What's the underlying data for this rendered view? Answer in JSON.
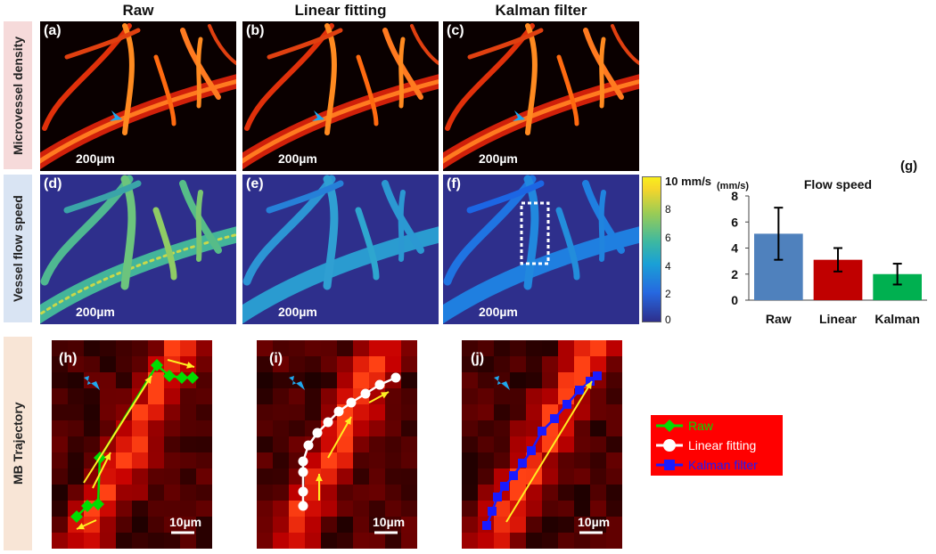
{
  "columns": {
    "raw": "Raw",
    "linear": "Linear fitting",
    "kalman": "Kalman filter"
  },
  "rows": {
    "density": "Microvessel density",
    "speed": "Vessel flow speed",
    "trajectory": "MB Trajectory"
  },
  "panels": {
    "a": "(a)",
    "b": "(b)",
    "c": "(c)",
    "d": "(d)",
    "e": "(e)",
    "f": "(f)",
    "g": "(g)",
    "h": "(h)",
    "i": "(i)",
    "j": "(j)"
  },
  "scalebars": {
    "large": "200µm",
    "small": "10µm"
  },
  "colorbar": {
    "max_label": "10 mm/s",
    "ticks": [
      "8",
      "6",
      "4",
      "2",
      "0"
    ]
  },
  "chart_data": {
    "type": "bar",
    "title": "Flow speed",
    "ylabel": "(mm/s)",
    "categories": [
      "Raw",
      "Linear",
      "Kalman"
    ],
    "values": [
      5.1,
      3.1,
      2.0
    ],
    "errors": [
      2.0,
      0.9,
      0.8
    ],
    "colors": [
      "#4f81bd",
      "#c00000",
      "#00b050"
    ],
    "ylim": [
      0,
      8
    ],
    "yticks": [
      "0",
      "2",
      "4",
      "6",
      "8"
    ]
  },
  "legend": {
    "items": [
      {
        "label": "Raw",
        "color": "#00dd00",
        "marker": "diamond"
      },
      {
        "label": "Linear fitting",
        "color": "#ffffff",
        "marker": "circle"
      },
      {
        "label": "Kalman filter",
        "color": "#1a1aff",
        "marker": "square"
      }
    ]
  }
}
